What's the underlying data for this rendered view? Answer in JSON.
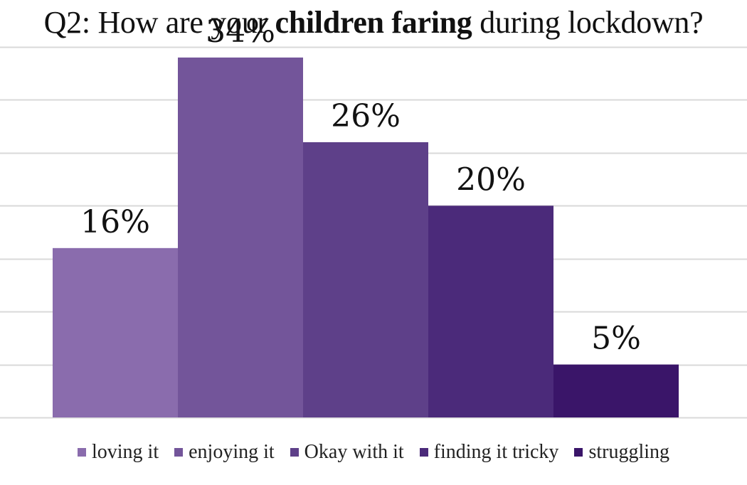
{
  "title": {
    "prefix": "Q2: How are your ",
    "emphasis": "children faring",
    "suffix": " during lockdown?"
  },
  "chart_data": {
    "type": "bar",
    "title": "Q2: How are your children faring during lockdown?",
    "categories": [
      "loving it",
      "enjoying it",
      "Okay with it",
      "finding it tricky",
      "struggling"
    ],
    "values": [
      16,
      34,
      26,
      20,
      5
    ],
    "data_labels": [
      "16%",
      "34%",
      "26%",
      "20%",
      "5%"
    ],
    "unit": "%",
    "colors": [
      "#8a6cad",
      "#73559a",
      "#5e4089",
      "#4b2a7a",
      "#3a1569"
    ],
    "ylim": [
      0,
      35
    ],
    "gridlines": [
      0,
      5,
      10,
      15,
      20,
      25,
      30,
      35
    ],
    "grid": true,
    "legend_position": "bottom",
    "xlabel": "",
    "ylabel": ""
  }
}
